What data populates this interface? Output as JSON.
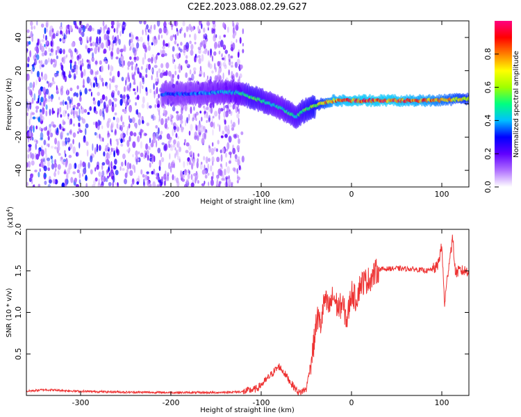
{
  "title": "C2E2.2023.088.02.29.G27",
  "chart_data": [
    {
      "type": "heatmap",
      "xlabel": "Height of straight line (km)",
      "ylabel": "Frequency (Hz)",
      "xlim": [
        -360,
        130
      ],
      "ylim": [
        -50,
        50
      ],
      "x_ticks": [
        -300,
        -200,
        -100,
        0,
        100
      ],
      "y_ticks": [
        -40,
        -20,
        0,
        20,
        40
      ],
      "colorbar": {
        "label": "Normalized spectral amplitude",
        "range": [
          0,
          1
        ],
        "ticks": [
          "0.0",
          "0.2",
          "0.4",
          "0.6",
          "0.8"
        ],
        "colors": [
          "#ffffff",
          "#b070ff",
          "#6000ff",
          "#0000ff",
          "#00c0ff",
          "#00ff80",
          "#a0ff00",
          "#ffff00",
          "#ff8000",
          "#ff0000",
          "#ff0080"
        ]
      },
      "ridge": {
        "height_km": [
          -210,
          -180,
          -150,
          -125,
          -110,
          -95,
          -80,
          -70,
          -62,
          -55,
          -45,
          -35,
          -20,
          0,
          40,
          80,
          130
        ],
        "freq_hz": [
          6,
          6,
          7,
          7,
          4,
          1,
          -2,
          -5,
          -8,
          -5,
          -2,
          0,
          2,
          2,
          2,
          2,
          3
        ],
        "amplitude": [
          0.35,
          0.35,
          0.4,
          0.45,
          0.55,
          0.5,
          0.45,
          0.5,
          0.5,
          0.55,
          0.6,
          0.7,
          0.85,
          0.9,
          0.9,
          0.85,
          0.7
        ]
      },
      "noise_region_km": [
        -360,
        -120
      ]
    },
    {
      "type": "line",
      "xlabel": "Height of straight line (km)",
      "ylabel": "SNR (10 * v/v)",
      "scale_note": "(x10",
      "scale_exp": "4",
      "scale_close": ")",
      "xlim": [
        -360,
        130
      ],
      "ylim": [
        0,
        20000
      ],
      "x_ticks": [
        -300,
        -200,
        -100,
        0,
        100
      ],
      "y_ticks": [
        5000,
        10000,
        15000,
        20000
      ],
      "y_tick_labels": [
        "0.5",
        "1.0",
        "1.5",
        "2.0"
      ],
      "color": "#ee3333",
      "series": [
        {
          "x": [
            -360,
            -340,
            -300,
            -250,
            -200,
            -150,
            -120,
            -105,
            -95,
            -85,
            -80,
            -75,
            -65,
            -58,
            -50,
            -42,
            -38,
            -34,
            -30,
            -25,
            -20,
            -15,
            -10,
            -5,
            0,
            5,
            10,
            20,
            30,
            50,
            70,
            85,
            95,
            100,
            103,
            108,
            112,
            115,
            120,
            130
          ],
          "y": [
            500,
            700,
            500,
            400,
            350,
            350,
            450,
            800,
            1800,
            3000,
            3500,
            2800,
            1200,
            300,
            800,
            6000,
            9500,
            8500,
            11500,
            10500,
            12000,
            10500,
            11000,
            9000,
            12500,
            11500,
            13500,
            14000,
            15200,
            15300,
            15200,
            15000,
            15500,
            18000,
            11000,
            16000,
            19000,
            14800,
            15000,
            15000
          ]
        }
      ]
    }
  ]
}
